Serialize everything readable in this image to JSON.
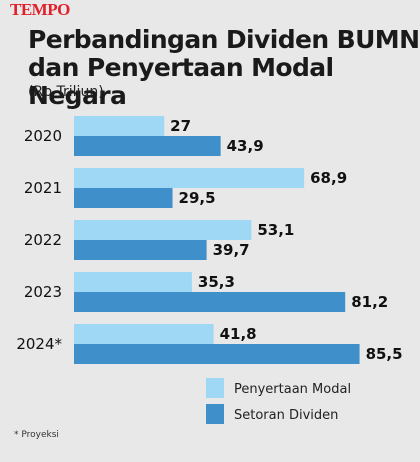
{
  "brand": {
    "logo_text": "TEMPO",
    "logo_color": "#e0202a"
  },
  "chart_data": {
    "type": "bar",
    "orientation": "horizontal",
    "title_line1": "Perbandingan Dividen BUMN",
    "title_line2": "dan Penyertaan Modal Negara",
    "subtitle": "(Rp Triliun)",
    "categories": [
      "2020",
      "2021",
      "2022",
      "2023",
      "2024*"
    ],
    "series": [
      {
        "name": "Penyertaan Modal",
        "values": [
          27,
          68.9,
          53.1,
          35.3,
          41.8
        ],
        "labels": [
          "27",
          "68,9",
          "53,1",
          "35,3",
          "41,8"
        ],
        "color": "#9fd8f5"
      },
      {
        "name": "Setoran Dividen",
        "values": [
          43.9,
          29.5,
          39.7,
          81.2,
          85.5
        ],
        "labels": [
          "43,9",
          "29,5",
          "39,7",
          "81,2",
          "85,5"
        ],
        "color": "#3f8fcb"
      }
    ],
    "grid": false,
    "legend_position": "bottom-right",
    "footnote": "* Proyeksi"
  }
}
